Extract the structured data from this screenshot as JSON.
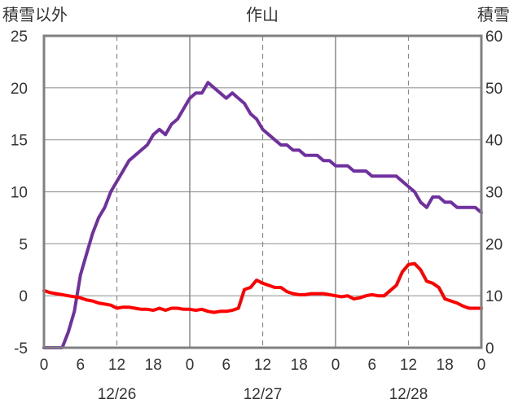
{
  "chart_data": {
    "type": "line",
    "title": "作山",
    "y_left_label": "積雪以外",
    "y_right_label": "積雪",
    "y_left_range": [
      -5,
      25
    ],
    "y_right_range": [
      0,
      60
    ],
    "y_left_ticks": [
      "25",
      "20",
      "15",
      "10",
      "5",
      "0",
      "-5"
    ],
    "y_right_ticks": [
      "60",
      "50",
      "40",
      "30",
      "20",
      "10",
      "0"
    ],
    "x_hour_labels": [
      "0",
      "6",
      "12",
      "18",
      "0",
      "6",
      "12",
      "18",
      "0",
      "6",
      "12",
      "18",
      "0"
    ],
    "x_date_labels": [
      "12/26",
      "12/27",
      "12/28"
    ],
    "x_range_hours": [
      0,
      72
    ],
    "grid": true,
    "series": [
      {
        "color": "#7030a0",
        "axis": "right",
        "x": [
          0,
          1,
          2,
          3,
          4,
          5,
          6,
          7,
          8,
          9,
          10,
          11,
          12,
          13,
          14,
          15,
          16,
          17,
          18,
          19,
          20,
          21,
          22,
          23,
          24,
          25,
          26,
          27,
          28,
          29,
          30,
          31,
          32,
          33,
          34,
          35,
          36,
          37,
          38,
          39,
          40,
          41,
          42,
          43,
          44,
          45,
          46,
          47,
          48,
          49,
          50,
          51,
          52,
          53,
          54,
          55,
          56,
          57,
          58,
          59,
          60,
          61,
          62,
          63,
          64,
          65,
          66,
          67,
          68,
          69,
          70,
          71,
          72
        ],
        "values": [
          0,
          0,
          0,
          0,
          3,
          7,
          14,
          18,
          22,
          25,
          27,
          30,
          32,
          34,
          36,
          37,
          38,
          39,
          41,
          42,
          41,
          43,
          44,
          46,
          48,
          49,
          49,
          51,
          50,
          49,
          48,
          49,
          48,
          47,
          45,
          44,
          42,
          41,
          40,
          39,
          39,
          38,
          38,
          37,
          37,
          37,
          36,
          36,
          35,
          35,
          35,
          34,
          34,
          34,
          33,
          33,
          33,
          33,
          33,
          32,
          31,
          30,
          28,
          27,
          29,
          29,
          28,
          28,
          27,
          27,
          27,
          27,
          26
        ]
      },
      {
        "color": "#ff0000",
        "axis": "left",
        "x": [
          0,
          1,
          2,
          3,
          4,
          5,
          6,
          7,
          8,
          9,
          10,
          11,
          12,
          13,
          14,
          15,
          16,
          17,
          18,
          19,
          20,
          21,
          22,
          23,
          24,
          25,
          26,
          27,
          28,
          29,
          30,
          31,
          32,
          33,
          34,
          35,
          36,
          37,
          38,
          39,
          40,
          41,
          42,
          43,
          44,
          45,
          46,
          47,
          48,
          49,
          50,
          51,
          52,
          53,
          54,
          55,
          56,
          57,
          58,
          59,
          60,
          61,
          62,
          63,
          64,
          65,
          66,
          67,
          68,
          69,
          70,
          71,
          72
        ],
        "values": [
          0.5,
          0.3,
          0.2,
          0.1,
          0,
          -0.1,
          -0.2,
          -0.4,
          -0.5,
          -0.7,
          -0.8,
          -0.9,
          -1.2,
          -1.1,
          -1.1,
          -1.2,
          -1.3,
          -1.3,
          -1.4,
          -1.2,
          -1.4,
          -1.2,
          -1.2,
          -1.3,
          -1.3,
          -1.4,
          -1.3,
          -1.5,
          -1.6,
          -1.5,
          -1.5,
          -1.4,
          -1.2,
          0.6,
          0.8,
          1.5,
          1.2,
          1.0,
          0.8,
          0.8,
          0.4,
          0.2,
          0.1,
          0.1,
          0.2,
          0.2,
          0.2,
          0.1,
          0,
          -0.1,
          0,
          -0.3,
          -0.2,
          0,
          0.1,
          0,
          0,
          0.5,
          1.0,
          2.3,
          3.0,
          3.1,
          2.5,
          1.4,
          1.2,
          0.8,
          -0.3,
          -0.5,
          -0.7,
          -1.0,
          -1.2,
          -1.2,
          -1.2
        ]
      }
    ]
  }
}
